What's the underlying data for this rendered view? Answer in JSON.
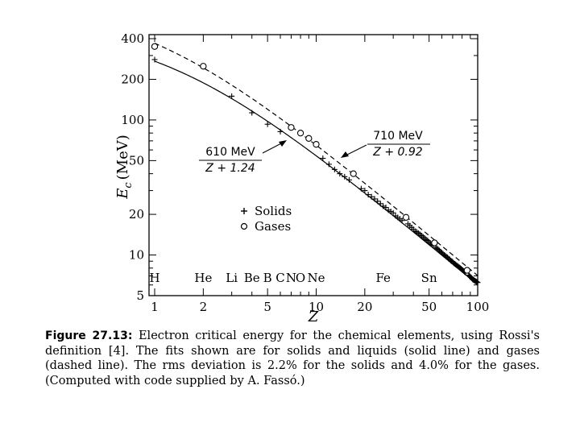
{
  "chart_data": {
    "type": "scatter",
    "title": "",
    "xlabel": "Z",
    "ylabel_main": "E",
    "ylabel_sub": "c",
    "ylabel_unit": "(MeV)",
    "x_scale": "log",
    "y_scale": "log",
    "xlim": [
      1,
      100
    ],
    "ylim": [
      5,
      400
    ],
    "x_ticks": [
      {
        "value": 1,
        "label": "1"
      },
      {
        "value": 2,
        "label": "2"
      },
      {
        "value": 5,
        "label": "5"
      },
      {
        "value": 10,
        "label": "10"
      },
      {
        "value": 20,
        "label": "20"
      },
      {
        "value": 50,
        "label": "50"
      },
      {
        "value": 100,
        "label": "100"
      }
    ],
    "y_ticks": [
      {
        "value": 5,
        "label": "5"
      },
      {
        "value": 10,
        "label": "10"
      },
      {
        "value": 20,
        "label": "20"
      },
      {
        "value": 50,
        "label": "50"
      },
      {
        "value": 100,
        "label": "100"
      },
      {
        "value": 200,
        "label": "200"
      },
      {
        "value": 400,
        "label": "400"
      }
    ],
    "grid": false,
    "legend_position": "center-left",
    "element_labels": [
      {
        "z": 1,
        "label": "H"
      },
      {
        "z": 2,
        "label": "He"
      },
      {
        "z": 3,
        "label": "Li"
      },
      {
        "z": 4,
        "label": "Be"
      },
      {
        "z": 5,
        "label": "B"
      },
      {
        "z": 6,
        "label": "C"
      },
      {
        "z": 7,
        "label": "N"
      },
      {
        "z": 8,
        "label": "O"
      },
      {
        "z": 10,
        "label": "Ne"
      },
      {
        "z": 26,
        "label": "Fe"
      },
      {
        "z": 50,
        "label": "Sn"
      }
    ],
    "series": [
      {
        "name": "Solids",
        "marker": "plus",
        "points": [
          [
            1,
            280
          ],
          [
            3,
            150
          ],
          [
            4,
            113
          ],
          [
            5,
            93
          ],
          [
            6,
            82
          ],
          [
            11,
            52
          ],
          [
            12,
            47
          ],
          [
            13,
            43
          ],
          [
            14,
            40
          ],
          [
            15,
            38
          ],
          [
            16,
            36
          ],
          [
            19,
            31
          ],
          [
            20,
            30
          ],
          [
            21,
            28
          ],
          [
            22,
            27
          ],
          [
            23,
            26
          ],
          [
            24,
            25
          ],
          [
            25,
            24
          ],
          [
            26,
            23
          ],
          [
            27,
            22.5
          ],
          [
            28,
            21.5
          ],
          [
            29,
            21
          ],
          [
            30,
            20.5
          ],
          [
            31,
            19.5
          ],
          [
            32,
            19
          ],
          [
            33,
            18.5
          ],
          [
            34,
            18
          ],
          [
            37,
            17
          ],
          [
            38,
            16.5
          ],
          [
            39,
            16
          ],
          [
            40,
            15.5
          ],
          [
            41,
            15
          ],
          [
            42,
            14.8
          ],
          [
            43,
            14.5
          ],
          [
            44,
            14.2
          ],
          [
            45,
            13.9
          ],
          [
            46,
            13.6
          ],
          [
            47,
            13.3
          ],
          [
            48,
            13
          ],
          [
            49,
            12.8
          ],
          [
            50,
            12.5
          ],
          [
            51,
            12.2
          ],
          [
            52,
            12
          ],
          [
            53,
            11.8
          ],
          [
            55,
            11.4
          ],
          [
            56,
            11.2
          ],
          [
            57,
            11
          ],
          [
            58,
            10.8
          ],
          [
            59,
            10.6
          ],
          [
            60,
            10.4
          ],
          [
            61,
            10.2
          ],
          [
            62,
            10
          ],
          [
            63,
            9.9
          ],
          [
            64,
            9.7
          ],
          [
            65,
            9.6
          ],
          [
            66,
            9.4
          ],
          [
            67,
            9.3
          ],
          [
            68,
            9.1
          ],
          [
            69,
            9
          ],
          [
            70,
            8.9
          ],
          [
            71,
            8.7
          ],
          [
            72,
            8.6
          ],
          [
            73,
            8.5
          ],
          [
            74,
            8.4
          ],
          [
            75,
            8.3
          ],
          [
            76,
            8.2
          ],
          [
            77,
            8.1
          ],
          [
            78,
            8
          ],
          [
            79,
            7.9
          ],
          [
            80,
            7.8
          ],
          [
            81,
            7.7
          ],
          [
            82,
            7.6
          ],
          [
            83,
            7.5
          ],
          [
            84,
            7.4
          ],
          [
            88,
            7.1
          ],
          [
            89,
            7
          ],
          [
            90,
            6.9
          ],
          [
            91,
            6.8
          ],
          [
            92,
            6.7
          ],
          [
            93,
            6.6
          ],
          [
            94,
            6.55
          ],
          [
            95,
            6.5
          ],
          [
            96,
            6.45
          ],
          [
            97,
            6.4
          ],
          [
            98,
            6.35
          ],
          [
            99,
            6.3
          ],
          [
            100,
            6.25
          ]
        ]
      },
      {
        "name": "Gases",
        "marker": "circle",
        "points": [
          [
            1,
            350
          ],
          [
            2,
            250
          ],
          [
            7,
            88
          ],
          [
            8,
            80
          ],
          [
            9,
            73
          ],
          [
            10,
            66
          ],
          [
            17,
            40
          ],
          [
            36,
            19
          ],
          [
            54,
            12.3
          ],
          [
            86,
            7.7
          ]
        ]
      }
    ],
    "fits": [
      {
        "line_style": "solid",
        "numerator": "610 MeV",
        "denominator": "Z + 1.24",
        "A": 610,
        "B": 1.24
      },
      {
        "line_style": "dashed",
        "numerator": "710 MeV",
        "denominator": "Z + 0.92",
        "A": 710,
        "B": 0.92
      }
    ]
  },
  "caption": {
    "label": "Figure 27.13:",
    "text": "Electron critical energy for the chemical elements, using Rossi's definition [4]. The fits shown are for solids and liquids (solid line) and gases (dashed line). The rms deviation is 2.2% for the solids and 4.0% for the gases. (Computed with code supplied by A. Fassó.)"
  }
}
